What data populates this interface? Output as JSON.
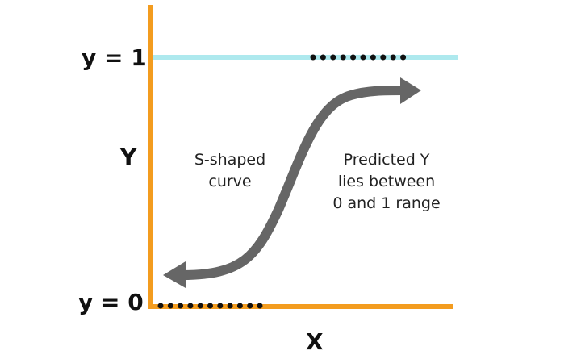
{
  "diagram": {
    "y_top_label": "y = 1",
    "y_bottom_label": "y = 0",
    "y_axis_label": "Y",
    "x_axis_label": "X",
    "curve_note_lines": [
      "S-shaped",
      "curve"
    ],
    "range_note_lines": [
      "Predicted Y",
      "lies between",
      "0 and 1 range"
    ],
    "colors": {
      "axis": "#f39c1f",
      "upper_line": "#aee9ee",
      "curve": "#666666",
      "dots": "#111111"
    }
  }
}
